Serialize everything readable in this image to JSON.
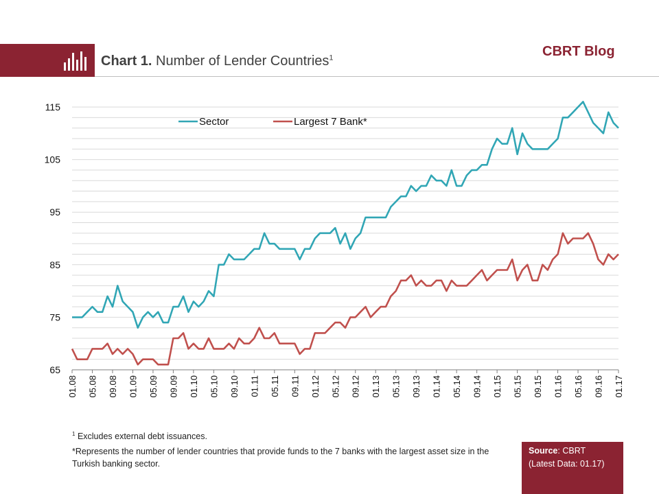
{
  "header": {
    "chart_label": "Chart 1.",
    "chart_title": "Number of Lender Countries",
    "title_superscript": "1",
    "brand": "CBRT Blog",
    "icon": "bar-chart-icon"
  },
  "footnotes": {
    "note1_marker": "1",
    "note1": "Excludes external debt issuances.",
    "note2": "*Represents the number of lender countries that provide funds to the 7 banks with the largest asset size in the Turkish banking sector."
  },
  "source": {
    "label": "Source",
    "value": ": CBRT",
    "latest": "(Latest Data: 01.17)"
  },
  "colors": {
    "accent": "#8b2332",
    "sector": "#31a6b5",
    "largest7": "#c0504d",
    "grid": "#d9d9d9"
  },
  "chart_data": {
    "type": "line",
    "title": "Number of Lender Countries",
    "ylim": [
      65,
      115
    ],
    "yticks": [
      65,
      75,
      85,
      95,
      105,
      115
    ],
    "grid": true,
    "legend_position": "top-left",
    "xtick_labels": [
      "01.08",
      "05.08",
      "09.08",
      "01.09",
      "05.09",
      "09.09",
      "01.10",
      "05.10",
      "09.10",
      "01.11",
      "05.11",
      "09.11",
      "01.12",
      "05.12",
      "09.12",
      "01.13",
      "05.13",
      "09.13",
      "01.14",
      "05.14",
      "09.14",
      "01.15",
      "05.15",
      "09.15",
      "01.16",
      "05.16",
      "09.16",
      "01.17"
    ],
    "x_start": "01.08",
    "x_end": "01.17",
    "series": [
      {
        "name": "Sector",
        "values": [
          75,
          75,
          75,
          76,
          77,
          76,
          76,
          79,
          77,
          81,
          78,
          77,
          76,
          73,
          75,
          76,
          75,
          76,
          74,
          74,
          77,
          77,
          79,
          76,
          78,
          77,
          78,
          80,
          79,
          85,
          85,
          87,
          86,
          86,
          86,
          87,
          88,
          88,
          91,
          89,
          89,
          88,
          88,
          88,
          88,
          86,
          88,
          88,
          90,
          91,
          91,
          91,
          92,
          89,
          91,
          88,
          90,
          91,
          94,
          94,
          94,
          94,
          94,
          96,
          97,
          98,
          98,
          100,
          99,
          100,
          100,
          102,
          101,
          101,
          100,
          103,
          100,
          100,
          102,
          103,
          103,
          104,
          104,
          107,
          109,
          108,
          108,
          111,
          106,
          110,
          108,
          107,
          107,
          107,
          107,
          108,
          109,
          113,
          113,
          114,
          115,
          116,
          114,
          112,
          111,
          110,
          114,
          112,
          111
        ]
      },
      {
        "name": "Largest 7 Bank*",
        "values": [
          69,
          67,
          67,
          67,
          69,
          69,
          69,
          70,
          68,
          69,
          68,
          69,
          68,
          66,
          67,
          67,
          67,
          66,
          66,
          66,
          71,
          71,
          72,
          69,
          70,
          69,
          69,
          71,
          69,
          69,
          69,
          70,
          69,
          71,
          70,
          70,
          71,
          73,
          71,
          71,
          72,
          70,
          70,
          70,
          70,
          68,
          69,
          69,
          72,
          72,
          72,
          73,
          74,
          74,
          73,
          75,
          75,
          76,
          77,
          75,
          76,
          77,
          77,
          79,
          80,
          82,
          82,
          83,
          81,
          82,
          81,
          81,
          82,
          82,
          80,
          82,
          81,
          81,
          81,
          82,
          83,
          84,
          82,
          83,
          84,
          84,
          84,
          86,
          82,
          84,
          85,
          82,
          82,
          85,
          84,
          86,
          87,
          91,
          89,
          90,
          90,
          90,
          91,
          89,
          86,
          85,
          87,
          86,
          87
        ]
      }
    ]
  }
}
